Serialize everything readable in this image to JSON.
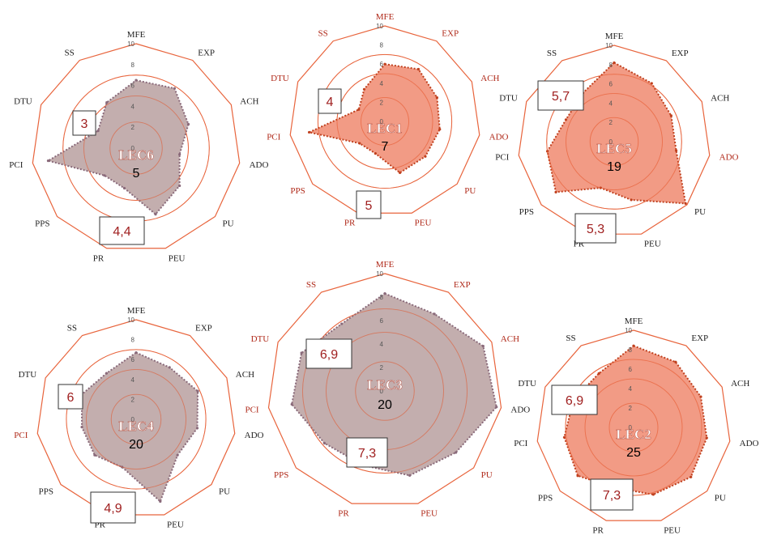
{
  "chart_data": [
    {
      "type": "radar",
      "title": "LEC6",
      "count": "5",
      "axes": [
        "MFE",
        "EXP",
        "ACH",
        "ADO",
        "PU",
        "PEU",
        "PR",
        "PPS",
        "PCI",
        "DTU",
        "SS"
      ],
      "axis_label_colors": [
        "#222222",
        "#222222",
        "#222222",
        "#222222",
        "#222222",
        "#222222",
        "#222222",
        "#222222",
        "#222222",
        "#222222",
        "#222222"
      ],
      "rlim": [
        0,
        10
      ],
      "rticks": [
        "0",
        "2",
        "4",
        "6",
        "8",
        "10"
      ],
      "values": [
        6.5,
        6.8,
        5.5,
        4.2,
        5.5,
        6.6,
        4.0,
        4.0,
        8.5,
        4.0,
        5.2
      ],
      "fill": "#b9a0a0",
      "stroke": "#8a6a7a",
      "notes": [
        "3",
        "4,4"
      ]
    },
    {
      "type": "radar",
      "title": "LEC1",
      "count": "7",
      "axes": [
        "MFE",
        "EXP",
        "ACH",
        "ADO",
        "PU",
        "PEU",
        "PR",
        "PPS",
        "PCI",
        "DTU",
        "SS"
      ],
      "axis_label_colors": [
        "#b02a1a",
        "#b02a1a",
        "#b02a1a",
        "#b02a1a",
        "#b02a1a",
        "#b02a1a",
        "#b02a1a",
        "#b02a1a",
        "#b02a1a",
        "#b02a1a",
        "#b02a1a"
      ],
      "rlim": [
        0,
        10
      ],
      "rticks": [
        "0",
        "2",
        "4",
        "6",
        "8",
        "10"
      ],
      "values": [
        6.0,
        6.5,
        6.0,
        5.8,
        5.6,
        5.6,
        3.5,
        3.5,
        8.0,
        3.0,
        4.0
      ],
      "fill": "#f08a70",
      "stroke": "#c0401e",
      "notes": [
        "4",
        "5"
      ]
    },
    {
      "type": "radar",
      "title": "LEC5",
      "count": "19",
      "axes": [
        "MFE",
        "EXP",
        "ACH",
        "ADO",
        "PU",
        "PEU",
        "PR",
        "PPS",
        "PCI",
        "DTU",
        "SS"
      ],
      "axis_label_colors": [
        "#222222",
        "#222222",
        "#222222",
        "#b02a1a",
        "#222222",
        "#222222",
        "#222222",
        "#222222",
        "#222222",
        "#222222",
        "#222222"
      ],
      "rlim": [
        0,
        10
      ],
      "rticks": [
        "0",
        "2",
        "4",
        "6",
        "8",
        "10"
      ],
      "values": [
        8.2,
        7.2,
        6.5,
        6.5,
        9.8,
        6.3,
        5.0,
        8.0,
        7.0,
        5.5,
        6.0
      ],
      "fill": "#f08a70",
      "stroke": "#c0401e",
      "notes": [
        "5,7",
        "5,3"
      ]
    },
    {
      "type": "radar",
      "title": "LEC4",
      "count": "20",
      "axes": [
        "MFE",
        "EXP",
        "ACH",
        "ADO",
        "PU",
        "PEU",
        "PR",
        "PPS",
        "PCI",
        "DTU",
        "SS"
      ],
      "axis_label_colors": [
        "#222222",
        "#222222",
        "#222222",
        "#222222",
        "#222222",
        "#222222",
        "#222222",
        "#222222",
        "#b02a1a",
        "#222222",
        "#222222"
      ],
      "rlim": [
        0,
        10
      ],
      "rticks": [
        "0",
        "2",
        "4",
        "6",
        "8",
        "10"
      ],
      "values": [
        6.7,
        6.2,
        6.8,
        6.2,
        5.5,
        8.6,
        5.0,
        5.5,
        5.5,
        6.0,
        5.5
      ],
      "fill": "#b9a0a0",
      "stroke": "#8a6a7a",
      "notes": [
        "6",
        "4,9"
      ]
    },
    {
      "type": "radar",
      "title": "LEC3",
      "count": "20",
      "axes": [
        "MFE",
        "EXP",
        "ACH",
        "ADO",
        "PU",
        "PEU",
        "PR",
        "PPS",
        "PCI",
        "DTU",
        "SS"
      ],
      "axis_label_colors": [
        "#b02a1a",
        "#b02a1a",
        "#b02a1a",
        "#222222",
        "#b02a1a",
        "#b02a1a",
        "#b02a1a",
        "#b02a1a",
        "#b02a1a",
        "#b02a1a",
        "#b02a1a"
      ],
      "rlim": [
        0,
        10
      ],
      "rticks": [
        "0",
        "2",
        "4",
        "6",
        "8",
        "10"
      ],
      "values": [
        8.3,
        7.8,
        9.2,
        9.6,
        8.0,
        7.5,
        6.6,
        6.8,
        8.0,
        7.8,
        6.8
      ],
      "fill": "#b9a0a0",
      "stroke": "#8a6a7a",
      "notes": [
        "6,9",
        "7,3"
      ]
    },
    {
      "type": "radar",
      "title": "LEC2",
      "count": "25",
      "axes": [
        "MFE",
        "EXP",
        "ACH",
        "ADO",
        "PU",
        "PEU",
        "PR",
        "PPS",
        "PCI",
        "DTU",
        "SS"
      ],
      "axis_label_colors": [
        "#222222",
        "#222222",
        "#222222",
        "#222222",
        "#222222",
        "#222222",
        "#222222",
        "#222222",
        "#222222",
        "#222222",
        "#222222"
      ],
      "rlim": [
        0,
        10
      ],
      "rticks": [
        "0",
        "2",
        "4",
        "6",
        "8",
        "10"
      ],
      "values": [
        8.4,
        8.0,
        7.6,
        7.6,
        7.8,
        7.2,
        6.5,
        7.6,
        7.2,
        6.8,
        6.6
      ],
      "fill": "#f08a70",
      "stroke": "#c0401e",
      "notes": [
        "6,9",
        "7,3"
      ]
    }
  ]
}
